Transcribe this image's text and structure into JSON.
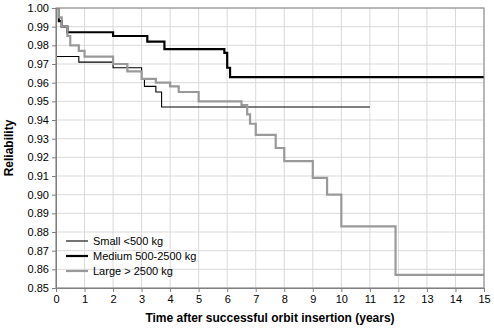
{
  "chart_data": {
    "type": "step",
    "x_label": "Time after successful orbit insertion (years)",
    "y_label": "Reliability",
    "xlim": [
      0,
      15
    ],
    "ylim": [
      0.85,
      1
    ],
    "xticks": [
      0,
      1,
      2,
      3,
      4,
      5,
      6,
      7,
      8,
      9,
      10,
      11,
      12,
      13,
      14,
      15
    ],
    "yticks": [
      0.85,
      0.86,
      0.87,
      0.88,
      0.89,
      {
        "value": 0.9,
        "label": "0.90"
      },
      0.91,
      0.92,
      0.93,
      0.94,
      0.95,
      0.96,
      0.97,
      0.98,
      0.99,
      {
        "value": 1,
        "label": "1.00"
      }
    ],
    "grid": true,
    "legend": "lower left",
    "series": [
      {
        "name": "Small <500 kg",
        "color": "#000000",
        "line_style": "thin",
        "x": [
          0,
          0.8,
          2,
          3,
          3.1,
          3.5,
          3.7,
          11
        ],
        "values": [
          0.974,
          0.971,
          0.968,
          0.962,
          0.958,
          0.955,
          0.947,
          0.947
        ]
      },
      {
        "name": "Medium 500-2500 kg",
        "color": "#000000",
        "line_style": "thick",
        "x": [
          0,
          0.1,
          0.2,
          0.4,
          2,
          3.2,
          3.8,
          5.9,
          6.0,
          6.1,
          15
        ],
        "values": [
          1,
          0.993,
          0.99,
          0.987,
          0.985,
          0.982,
          0.978,
          0.976,
          0.968,
          0.963,
          0.963
        ]
      },
      {
        "name": "Large > 2500 kg",
        "color": "#999999",
        "line_style": "thick",
        "x": [
          0,
          0.1,
          0.2,
          0.4,
          0.5,
          0.8,
          1,
          2,
          2.5,
          3,
          3.5,
          4,
          4.3,
          5,
          6.5,
          6.7,
          6.8,
          7,
          7.7,
          8,
          9,
          9.5,
          10,
          11.9,
          15
        ],
        "values": [
          1,
          0.995,
          0.99,
          0.985,
          0.98,
          0.977,
          0.974,
          0.97,
          0.966,
          0.962,
          0.96,
          0.958,
          0.955,
          0.95,
          0.948,
          0.943,
          0.938,
          0.932,
          0.925,
          0.918,
          0.909,
          0.9,
          0.883,
          0.857,
          0.857
        ]
      }
    ]
  }
}
